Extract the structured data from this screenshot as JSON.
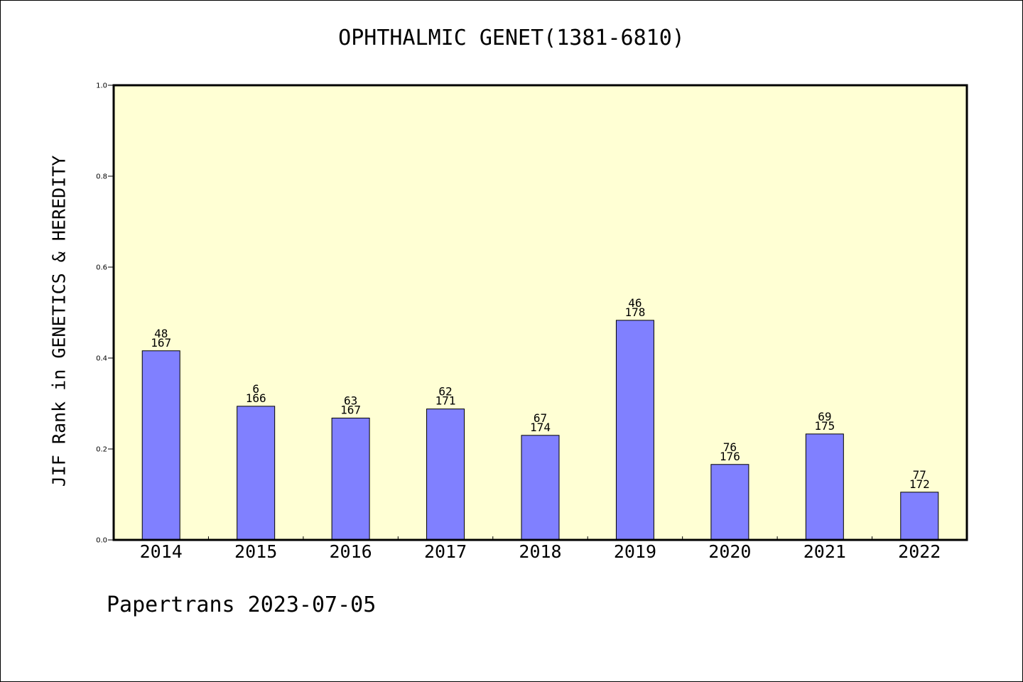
{
  "chart_data": {
    "type": "bar",
    "title": "OPHTHALMIC GENET(1381-6810)",
    "ylabel": "JIF Rank in GENETICS & HEREDITY",
    "xlabel": "",
    "ylim": [
      0,
      1.0
    ],
    "yticks": [
      "0.0",
      "0.2",
      "0.4",
      "0.6",
      "0.8",
      "1.0"
    ],
    "categories": [
      "2014",
      "2015",
      "2016",
      "2017",
      "2018",
      "2019",
      "2020",
      "2021",
      "2022"
    ],
    "values": [
      0.416,
      0.294,
      0.268,
      0.288,
      0.23,
      0.483,
      0.166,
      0.233,
      0.105
    ],
    "rank_labels": [
      "48",
      "6",
      "63",
      "62",
      "67",
      "46",
      "76",
      "69",
      "77"
    ],
    "total_labels": [
      "167",
      "166",
      "167",
      "171",
      "174",
      "178",
      "176",
      "175",
      "172"
    ],
    "plot_background": "#ffffd4",
    "bar_color": "#8080ff",
    "grid": false,
    "legend": "none"
  },
  "footer": "Papertrans 2023-07-05"
}
